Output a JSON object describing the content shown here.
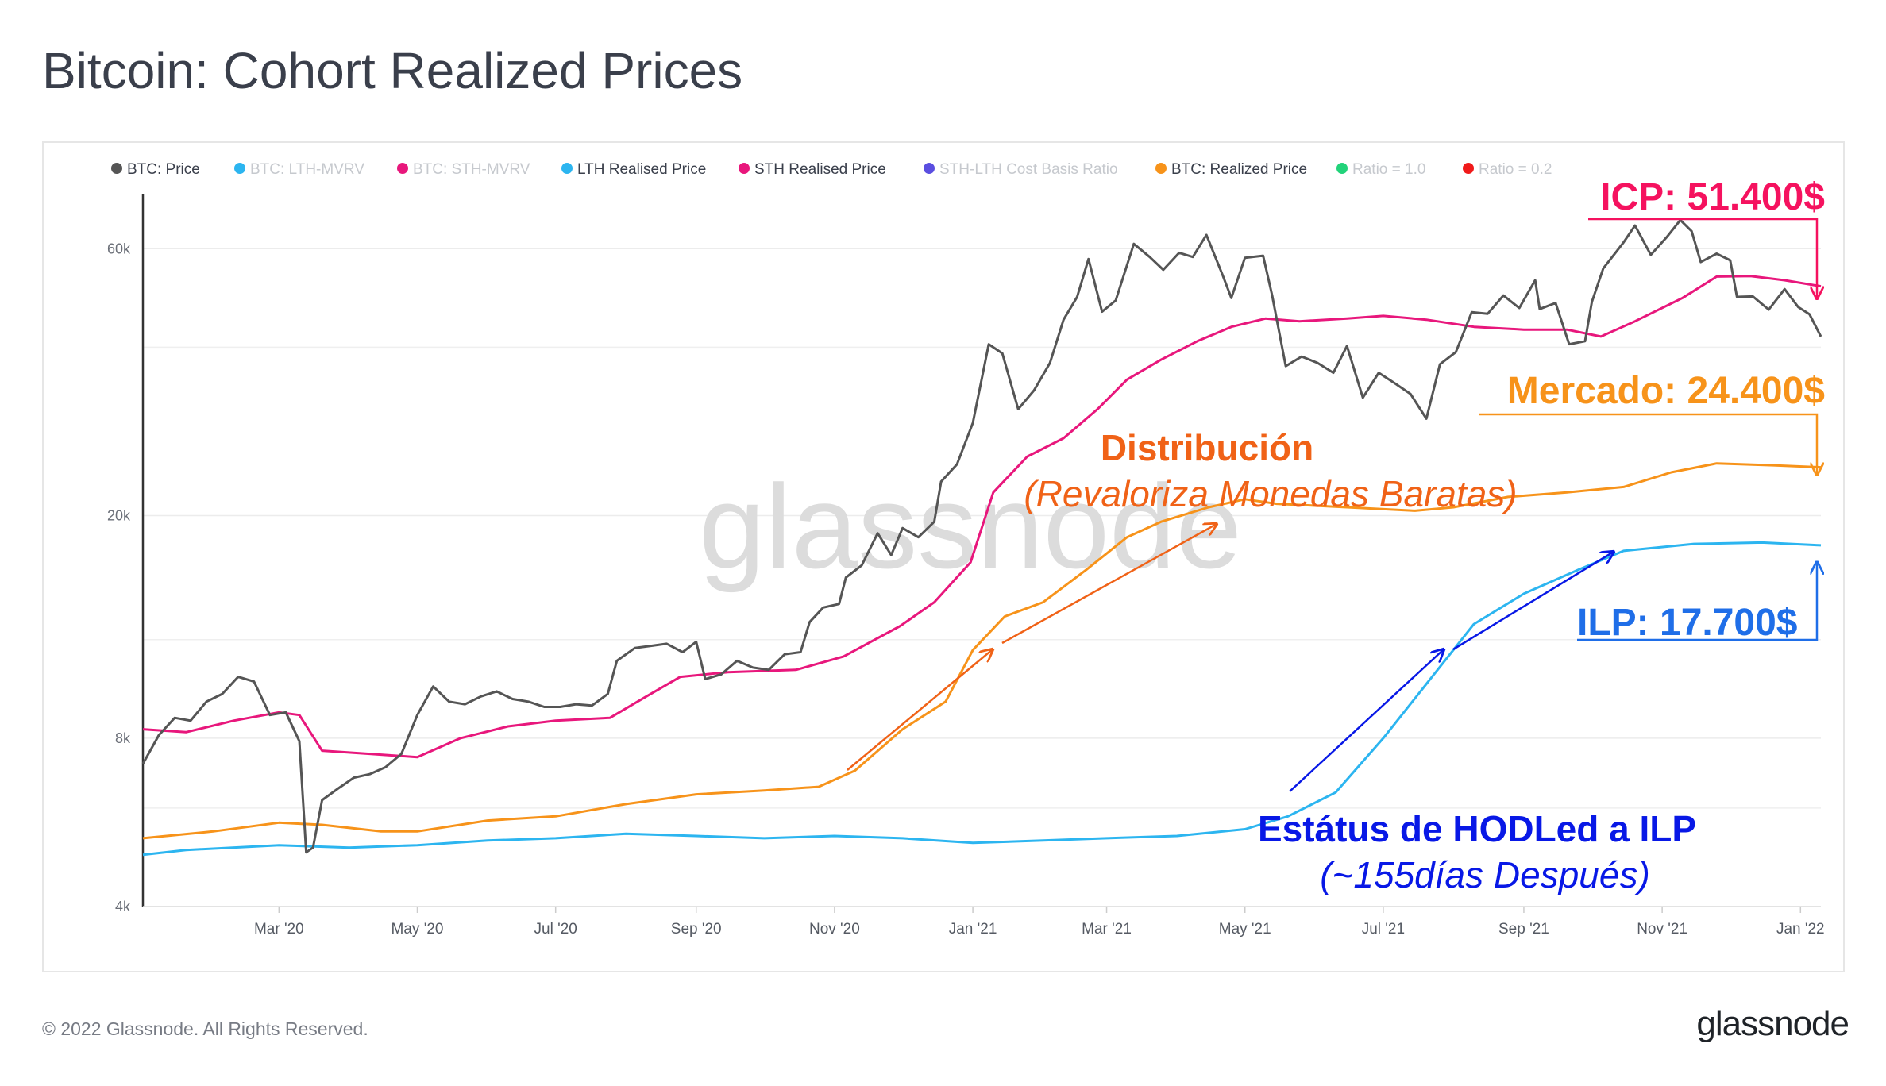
{
  "title": "Bitcoin: Cohort Realized Prices",
  "footer": "© 2022 Glassnode. All Rights Reserved.",
  "brand": "glassnode",
  "watermark": "glassnode",
  "colors": {
    "price": "#555555",
    "lth": "#2cb5f0",
    "sth": "#e8177c",
    "realized": "#f7931a",
    "annot_red": "#f5125f",
    "annot_orange": "#f7931a",
    "annot_dist": "#f06217",
    "annot_blue": "#1f6ee8",
    "annot_darkblue": "#0818e6"
  },
  "legend": [
    {
      "label": "BTC: Price",
      "color": "#555555",
      "active": true
    },
    {
      "label": "BTC: LTH-MVRV",
      "color": "#2cb5f0",
      "active": false
    },
    {
      "label": "BTC: STH-MVRV",
      "color": "#e8177c",
      "active": false
    },
    {
      "label": "LTH Realised Price",
      "color": "#2cb5f0",
      "active": true
    },
    {
      "label": "STH Realised Price",
      "color": "#e8177c",
      "active": true
    },
    {
      "label": "STH-LTH Cost Basis Ratio",
      "color": "#5a4ee0",
      "active": false
    },
    {
      "label": "BTC: Realized Price",
      "color": "#f7931a",
      "active": true
    },
    {
      "label": "Ratio = 1.0",
      "color": "#22d37a",
      "active": false
    },
    {
      "label": "Ratio = 0.2",
      "color": "#f01a1a",
      "active": false
    }
  ],
  "annotations": {
    "icp": "ICP: 51.400$",
    "mercado": "Mercado: 24.400$",
    "distribucion": "Distribución",
    "revaloriza": "(Revaloriza Monedas Baratas)",
    "estatus": "Estátus de HODLed a ILP",
    "dias": "(~155días Después)",
    "ilp": "ILP: 17.700$"
  },
  "chart_data": {
    "type": "line",
    "y_scale": "log",
    "ylim": [
      4000,
      75000
    ],
    "y_ticks": [
      {
        "value": 4000,
        "label": "4k"
      },
      {
        "value": 8000,
        "label": "8k"
      },
      {
        "value": 20000,
        "label": "20k"
      },
      {
        "value": 60000,
        "label": "60k"
      }
    ],
    "x_range": [
      "2020-01-01",
      "2022-01-10"
    ],
    "x_ticks": [
      {
        "date": "2020-03-01",
        "label": "Mar '20"
      },
      {
        "date": "2020-05-01",
        "label": "May '20"
      },
      {
        "date": "2020-07-01",
        "label": "Jul '20"
      },
      {
        "date": "2020-09-01",
        "label": "Sep '20"
      },
      {
        "date": "2020-11-01",
        "label": "Nov '20"
      },
      {
        "date": "2021-01-01",
        "label": "Jan '21"
      },
      {
        "date": "2021-03-01",
        "label": "Mar '21"
      },
      {
        "date": "2021-05-01",
        "label": "May '21"
      },
      {
        "date": "2021-07-01",
        "label": "Jul '21"
      },
      {
        "date": "2021-09-01",
        "label": "Sep '21"
      },
      {
        "date": "2021-11-01",
        "label": "Nov '21"
      },
      {
        "date": "2022-01-01",
        "label": "Jan '22"
      }
    ],
    "series": [
      {
        "name": "BTC: Price",
        "key": "price",
        "points": [
          [
            "2020-01-01",
            7200
          ],
          [
            "2020-01-08",
            8100
          ],
          [
            "2020-01-15",
            8700
          ],
          [
            "2020-01-22",
            8600
          ],
          [
            "2020-01-29",
            9300
          ],
          [
            "2020-02-05",
            9600
          ],
          [
            "2020-02-12",
            10300
          ],
          [
            "2020-02-19",
            10100
          ],
          [
            "2020-02-26",
            8800
          ],
          [
            "2020-03-04",
            8900
          ],
          [
            "2020-03-10",
            7900
          ],
          [
            "2020-03-13",
            5000
          ],
          [
            "2020-03-16",
            5100
          ],
          [
            "2020-03-20",
            6200
          ],
          [
            "2020-03-27",
            6500
          ],
          [
            "2020-04-03",
            6800
          ],
          [
            "2020-04-10",
            6900
          ],
          [
            "2020-04-17",
            7100
          ],
          [
            "2020-04-24",
            7500
          ],
          [
            "2020-05-01",
            8800
          ],
          [
            "2020-05-08",
            9900
          ],
          [
            "2020-05-15",
            9300
          ],
          [
            "2020-05-22",
            9200
          ],
          [
            "2020-05-29",
            9500
          ],
          [
            "2020-06-05",
            9700
          ],
          [
            "2020-06-12",
            9400
          ],
          [
            "2020-06-19",
            9300
          ],
          [
            "2020-06-26",
            9100
          ],
          [
            "2020-07-03",
            9100
          ],
          [
            "2020-07-10",
            9200
          ],
          [
            "2020-07-17",
            9150
          ],
          [
            "2020-07-24",
            9600
          ],
          [
            "2020-07-28",
            11000
          ],
          [
            "2020-08-05",
            11600
          ],
          [
            "2020-08-12",
            11700
          ],
          [
            "2020-08-19",
            11800
          ],
          [
            "2020-08-26",
            11400
          ],
          [
            "2020-09-01",
            11900
          ],
          [
            "2020-09-05",
            10200
          ],
          [
            "2020-09-12",
            10400
          ],
          [
            "2020-09-19",
            11000
          ],
          [
            "2020-09-26",
            10700
          ],
          [
            "2020-10-03",
            10600
          ],
          [
            "2020-10-10",
            11300
          ],
          [
            "2020-10-17",
            11400
          ],
          [
            "2020-10-21",
            12900
          ],
          [
            "2020-10-27",
            13700
          ],
          [
            "2020-11-03",
            13900
          ],
          [
            "2020-11-06",
            15500
          ],
          [
            "2020-11-13",
            16300
          ],
          [
            "2020-11-20",
            18600
          ],
          [
            "2020-11-26",
            17000
          ],
          [
            "2020-12-01",
            19000
          ],
          [
            "2020-12-08",
            18300
          ],
          [
            "2020-12-15",
            19500
          ],
          [
            "2020-12-18",
            23000
          ],
          [
            "2020-12-25",
            24700
          ],
          [
            "2021-01-01",
            29300
          ],
          [
            "2021-01-08",
            40500
          ],
          [
            "2021-01-14",
            39000
          ],
          [
            "2021-01-21",
            31000
          ],
          [
            "2021-01-28",
            33500
          ],
          [
            "2021-02-04",
            37500
          ],
          [
            "2021-02-10",
            44800
          ],
          [
            "2021-02-16",
            49200
          ],
          [
            "2021-02-21",
            57500
          ],
          [
            "2021-02-27",
            46300
          ],
          [
            "2021-03-05",
            48500
          ],
          [
            "2021-03-13",
            61200
          ],
          [
            "2021-03-20",
            58000
          ],
          [
            "2021-03-26",
            55000
          ],
          [
            "2021-04-02",
            59000
          ],
          [
            "2021-04-08",
            58000
          ],
          [
            "2021-04-14",
            63500
          ],
          [
            "2021-04-21",
            54000
          ],
          [
            "2021-04-25",
            49000
          ],
          [
            "2021-05-01",
            57800
          ],
          [
            "2021-05-09",
            58300
          ],
          [
            "2021-05-13",
            49500
          ],
          [
            "2021-05-19",
            37000
          ],
          [
            "2021-05-26",
            38500
          ],
          [
            "2021-06-02",
            37500
          ],
          [
            "2021-06-09",
            36000
          ],
          [
            "2021-06-15",
            40200
          ],
          [
            "2021-06-22",
            32500
          ],
          [
            "2021-06-29",
            36000
          ],
          [
            "2021-07-06",
            34500
          ],
          [
            "2021-07-13",
            33000
          ],
          [
            "2021-07-20",
            29800
          ],
          [
            "2021-07-26",
            37300
          ],
          [
            "2021-08-02",
            39200
          ],
          [
            "2021-08-09",
            46200
          ],
          [
            "2021-08-16",
            45900
          ],
          [
            "2021-08-23",
            49500
          ],
          [
            "2021-08-30",
            47000
          ],
          [
            "2021-09-06",
            52700
          ],
          [
            "2021-09-08",
            46800
          ],
          [
            "2021-09-15",
            48000
          ],
          [
            "2021-09-21",
            40500
          ],
          [
            "2021-09-28",
            41000
          ],
          [
            "2021-10-01",
            48200
          ],
          [
            "2021-10-06",
            55300
          ],
          [
            "2021-10-15",
            61600
          ],
          [
            "2021-10-20",
            66000
          ],
          [
            "2021-10-27",
            58500
          ],
          [
            "2021-11-03",
            62900
          ],
          [
            "2021-11-09",
            67500
          ],
          [
            "2021-11-14",
            64500
          ],
          [
            "2021-11-18",
            56800
          ],
          [
            "2021-11-25",
            58800
          ],
          [
            "2021-12-01",
            57200
          ],
          [
            "2021-12-04",
            49200
          ],
          [
            "2021-12-11",
            49300
          ],
          [
            "2021-12-18",
            46700
          ],
          [
            "2021-12-25",
            50800
          ],
          [
            "2021-12-31",
            47200
          ],
          [
            "2022-01-05",
            45800
          ],
          [
            "2022-01-10",
            41800
          ]
        ]
      },
      {
        "name": "STH Realised Price",
        "key": "sth",
        "points": [
          [
            "2020-01-01",
            8300
          ],
          [
            "2020-01-20",
            8200
          ],
          [
            "2020-02-10",
            8600
          ],
          [
            "2020-03-01",
            8900
          ],
          [
            "2020-03-10",
            8800
          ],
          [
            "2020-03-20",
            7600
          ],
          [
            "2020-04-10",
            7500
          ],
          [
            "2020-05-01",
            7400
          ],
          [
            "2020-05-20",
            8000
          ],
          [
            "2020-06-10",
            8400
          ],
          [
            "2020-07-01",
            8600
          ],
          [
            "2020-07-25",
            8700
          ],
          [
            "2020-08-10",
            9500
          ],
          [
            "2020-08-25",
            10300
          ],
          [
            "2020-09-15",
            10500
          ],
          [
            "2020-10-15",
            10600
          ],
          [
            "2020-11-05",
            11200
          ],
          [
            "2020-11-30",
            12700
          ],
          [
            "2020-12-15",
            14000
          ],
          [
            "2020-12-31",
            16500
          ],
          [
            "2021-01-10",
            22000
          ],
          [
            "2021-01-25",
            25500
          ],
          [
            "2021-02-10",
            27500
          ],
          [
            "2021-02-25",
            31000
          ],
          [
            "2021-03-10",
            35000
          ],
          [
            "2021-03-25",
            38000
          ],
          [
            "2021-04-10",
            41000
          ],
          [
            "2021-04-25",
            43500
          ],
          [
            "2021-05-10",
            45000
          ],
          [
            "2021-05-25",
            44500
          ],
          [
            "2021-06-15",
            45000
          ],
          [
            "2021-07-01",
            45500
          ],
          [
            "2021-07-20",
            44800
          ],
          [
            "2021-08-10",
            43500
          ],
          [
            "2021-09-01",
            43000
          ],
          [
            "2021-09-20",
            43000
          ],
          [
            "2021-10-05",
            41800
          ],
          [
            "2021-10-20",
            44500
          ],
          [
            "2021-11-10",
            49000
          ],
          [
            "2021-11-25",
            53500
          ],
          [
            "2021-12-10",
            53600
          ],
          [
            "2021-12-25",
            52700
          ],
          [
            "2022-01-10",
            51400
          ]
        ]
      },
      {
        "name": "BTC: Realized Price",
        "key": "realized",
        "points": [
          [
            "2020-01-01",
            5300
          ],
          [
            "2020-02-01",
            5450
          ],
          [
            "2020-03-01",
            5650
          ],
          [
            "2020-03-20",
            5600
          ],
          [
            "2020-04-15",
            5450
          ],
          [
            "2020-05-01",
            5450
          ],
          [
            "2020-06-01",
            5700
          ],
          [
            "2020-07-01",
            5800
          ],
          [
            "2020-08-01",
            6100
          ],
          [
            "2020-09-01",
            6350
          ],
          [
            "2020-10-01",
            6450
          ],
          [
            "2020-10-25",
            6550
          ],
          [
            "2020-11-10",
            7000
          ],
          [
            "2020-12-01",
            8300
          ],
          [
            "2020-12-20",
            9300
          ],
          [
            "2021-01-01",
            11500
          ],
          [
            "2021-01-15",
            13200
          ],
          [
            "2021-02-01",
            14000
          ],
          [
            "2021-02-20",
            16000
          ],
          [
            "2021-03-10",
            18300
          ],
          [
            "2021-03-25",
            19500
          ],
          [
            "2021-04-15",
            20700
          ],
          [
            "2021-05-01",
            21400
          ],
          [
            "2021-05-15",
            21000
          ],
          [
            "2021-06-15",
            20700
          ],
          [
            "2021-07-15",
            20400
          ],
          [
            "2021-08-01",
            20700
          ],
          [
            "2021-08-25",
            21600
          ],
          [
            "2021-09-20",
            22000
          ],
          [
            "2021-10-15",
            22500
          ],
          [
            "2021-11-05",
            23900
          ],
          [
            "2021-11-25",
            24800
          ],
          [
            "2021-12-20",
            24600
          ],
          [
            "2022-01-10",
            24400
          ]
        ]
      },
      {
        "name": "LTH Realised Price",
        "key": "lth",
        "points": [
          [
            "2020-01-01",
            4950
          ],
          [
            "2020-01-20",
            5050
          ],
          [
            "2020-03-01",
            5150
          ],
          [
            "2020-04-01",
            5100
          ],
          [
            "2020-05-01",
            5150
          ],
          [
            "2020-06-01",
            5250
          ],
          [
            "2020-07-01",
            5300
          ],
          [
            "2020-08-01",
            5400
          ],
          [
            "2020-09-01",
            5350
          ],
          [
            "2020-10-01",
            5300
          ],
          [
            "2020-11-01",
            5350
          ],
          [
            "2020-12-01",
            5300
          ],
          [
            "2021-01-01",
            5200
          ],
          [
            "2021-02-01",
            5250
          ],
          [
            "2021-03-01",
            5300
          ],
          [
            "2021-04-01",
            5350
          ],
          [
            "2021-05-01",
            5500
          ],
          [
            "2021-05-20",
            5800
          ],
          [
            "2021-06-10",
            6400
          ],
          [
            "2021-07-01",
            8000
          ],
          [
            "2021-07-20",
            10000
          ],
          [
            "2021-08-10",
            12800
          ],
          [
            "2021-09-01",
            14500
          ],
          [
            "2021-09-25",
            16000
          ],
          [
            "2021-10-15",
            17300
          ],
          [
            "2021-11-15",
            17800
          ],
          [
            "2021-12-15",
            17900
          ],
          [
            "2022-01-10",
            17700
          ]
        ]
      }
    ]
  }
}
